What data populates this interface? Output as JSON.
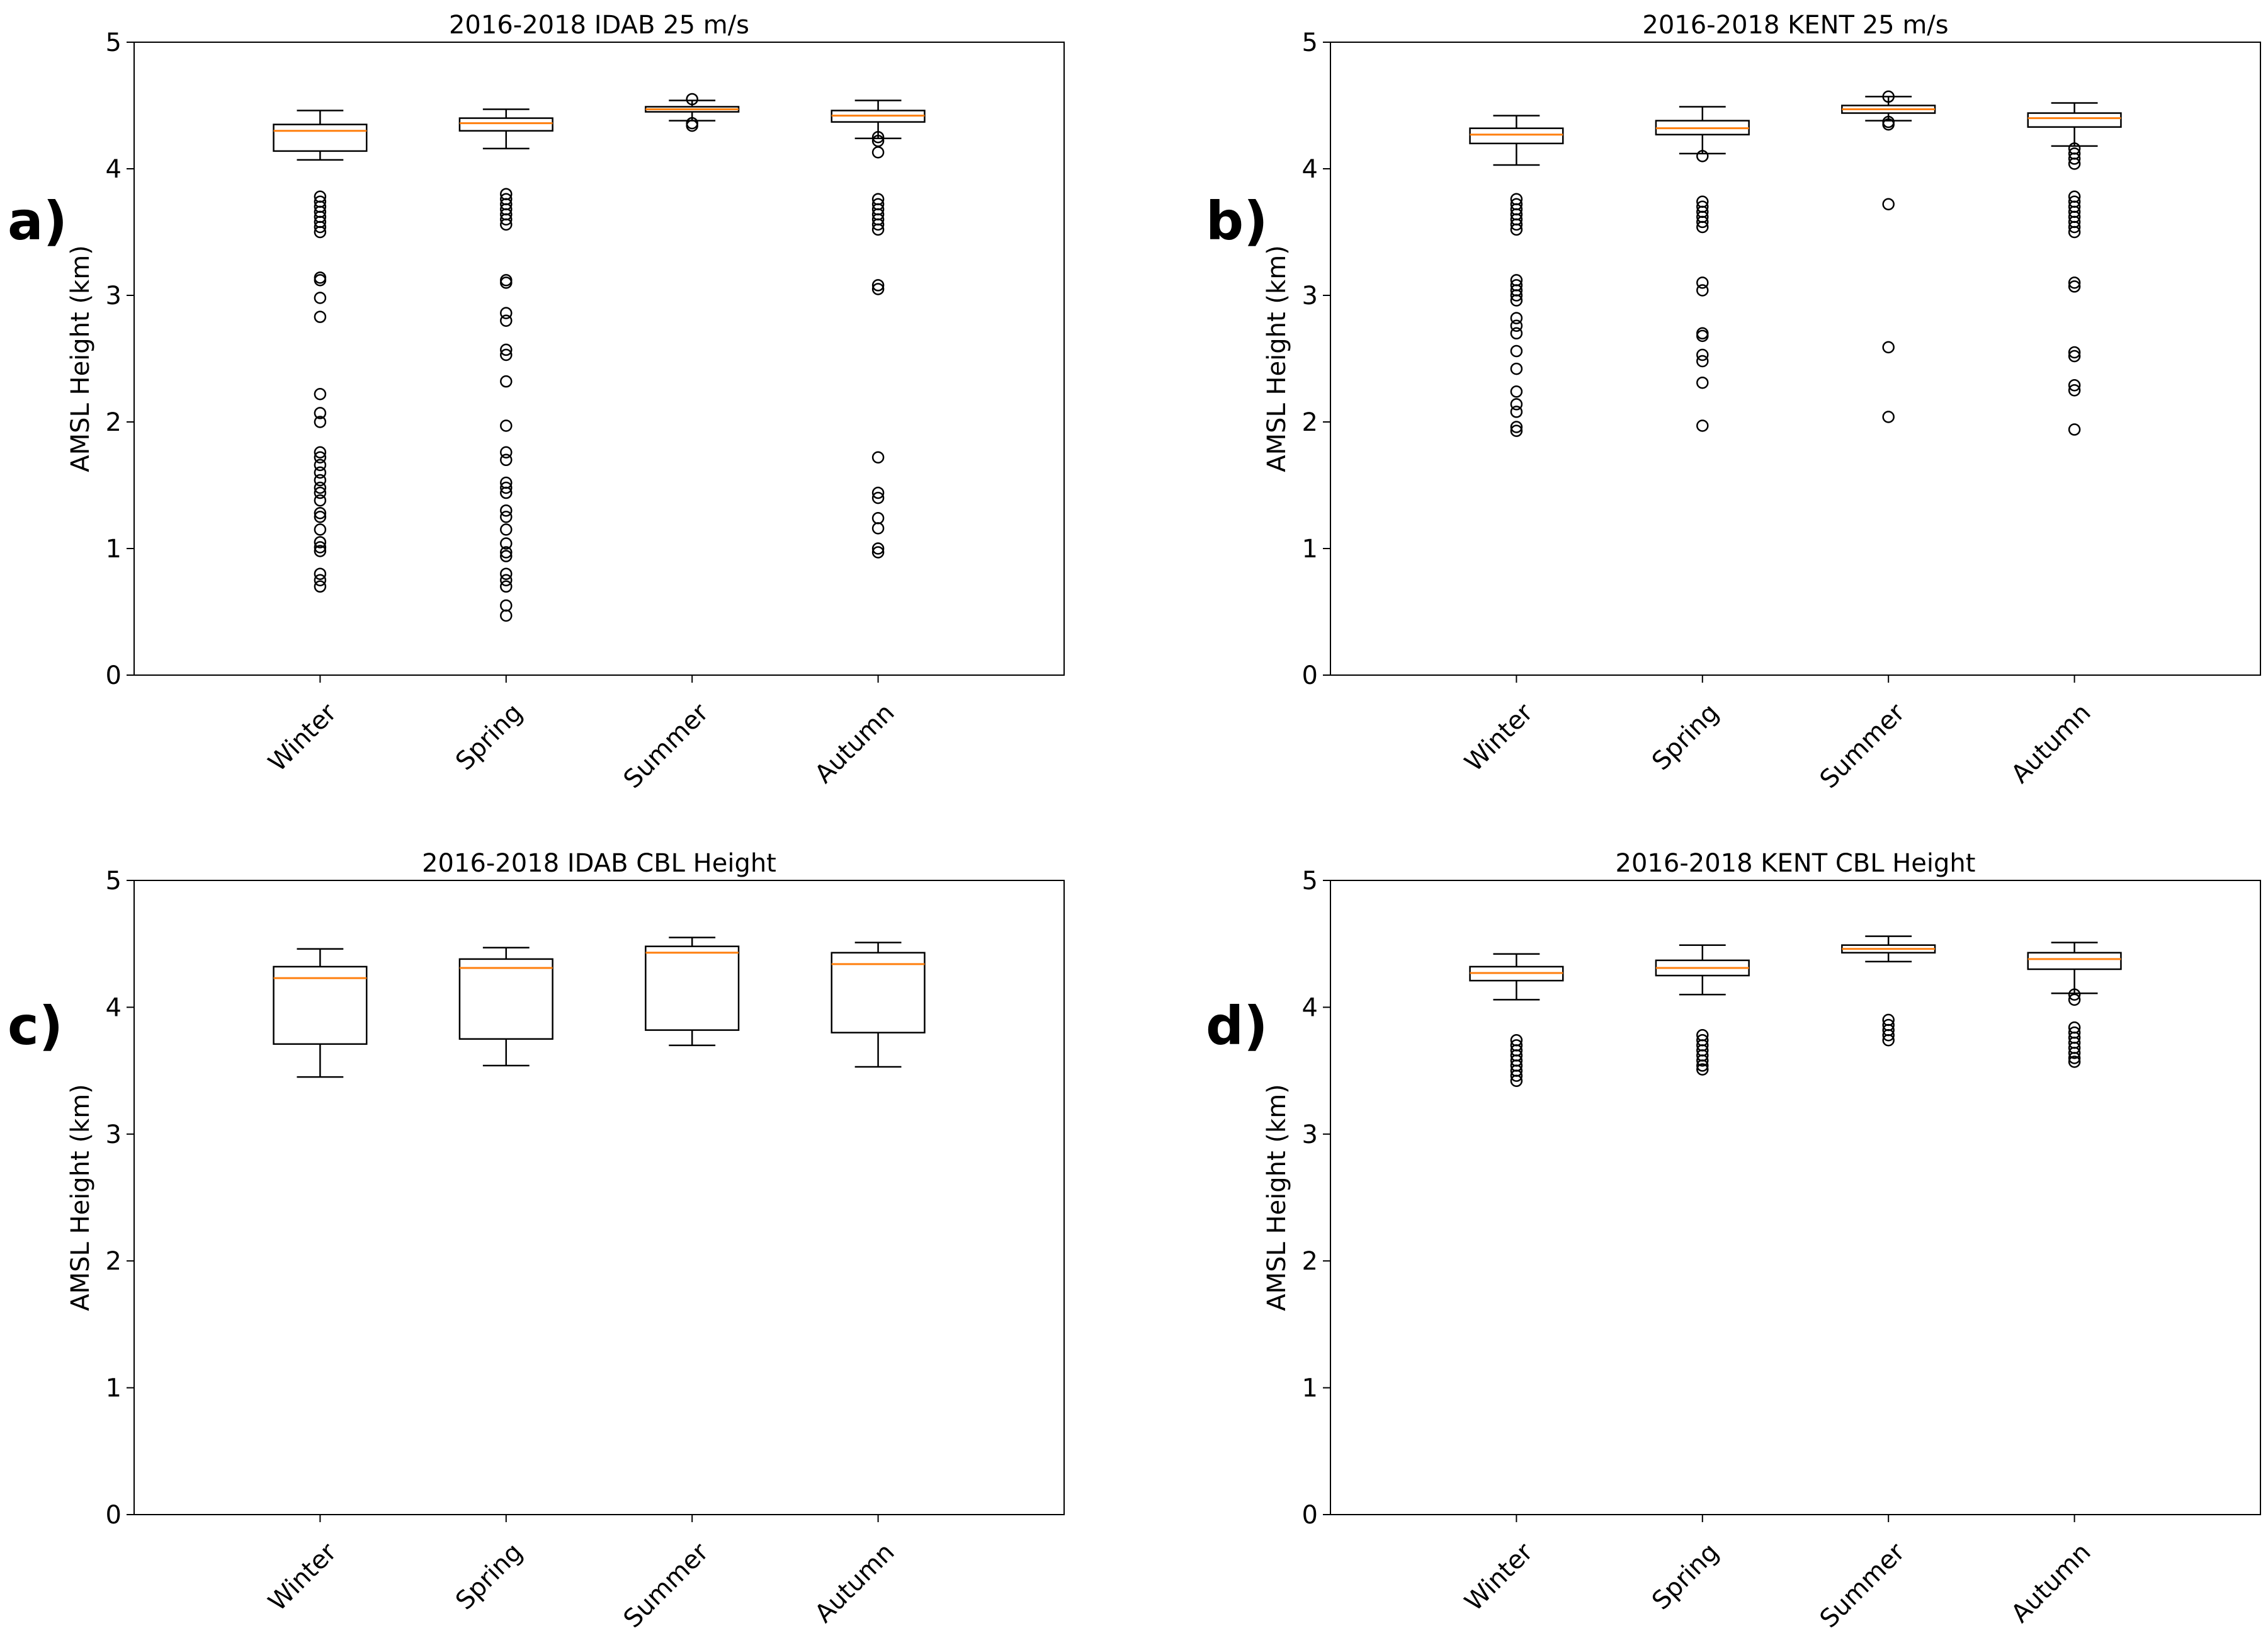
{
  "chart_data": [
    {
      "panel": "a)",
      "type": "box",
      "title": "2016-2018 IDAB 25 m/s",
      "ylabel": "AMSL Height (km)",
      "ylim": [
        0,
        5
      ],
      "yticks": [
        0,
        1,
        2,
        3,
        4,
        5
      ],
      "categories": [
        "Winter",
        "Spring",
        "Summer",
        "Autumn"
      ],
      "boxes": [
        {
          "whislo": 4.07,
          "q1": 4.14,
          "med": 4.3,
          "q3": 4.35,
          "whishi": 4.46,
          "fliers": [
            3.78,
            3.74,
            3.7,
            3.66,
            3.62,
            3.58,
            3.54,
            3.5,
            3.14,
            3.12,
            2.98,
            2.83,
            2.22,
            2.07,
            2.0,
            1.76,
            1.72,
            1.66,
            1.6,
            1.54,
            1.48,
            1.44,
            1.38,
            1.28,
            1.25,
            1.15,
            1.05,
            1.01,
            0.98,
            0.8,
            0.75,
            0.7
          ]
        },
        {
          "whislo": 4.16,
          "q1": 4.3,
          "med": 4.36,
          "q3": 4.4,
          "whishi": 4.47,
          "fliers": [
            3.8,
            3.76,
            3.72,
            3.68,
            3.64,
            3.6,
            3.56,
            3.12,
            3.1,
            2.86,
            2.8,
            2.57,
            2.53,
            2.32,
            1.97,
            1.76,
            1.7,
            1.52,
            1.48,
            1.44,
            1.3,
            1.25,
            1.15,
            1.04,
            0.97,
            0.94,
            0.8,
            0.75,
            0.7,
            0.55,
            0.47
          ]
        },
        {
          "whislo": 4.38,
          "q1": 4.45,
          "med": 4.47,
          "q3": 4.49,
          "whishi": 4.54,
          "fliers": [
            4.55,
            4.36,
            4.34
          ]
        },
        {
          "whislo": 4.24,
          "q1": 4.37,
          "med": 4.42,
          "q3": 4.46,
          "whishi": 4.54,
          "fliers": [
            4.25,
            4.22,
            4.13,
            3.76,
            3.72,
            3.68,
            3.64,
            3.6,
            3.56,
            3.52,
            3.08,
            3.05,
            1.72,
            1.44,
            1.4,
            1.24,
            1.16,
            1.0,
            0.97
          ]
        }
      ]
    },
    {
      "panel": "b)",
      "type": "box",
      "title": "2016-2018 KENT 25 m/s",
      "ylabel": "AMSL Height (km)",
      "ylim": [
        0,
        5
      ],
      "yticks": [
        0,
        1,
        2,
        3,
        4,
        5
      ],
      "categories": [
        "Winter",
        "Spring",
        "Summer",
        "Autumn"
      ],
      "boxes": [
        {
          "whislo": 4.03,
          "q1": 4.2,
          "med": 4.27,
          "q3": 4.32,
          "whishi": 4.42,
          "fliers": [
            3.76,
            3.72,
            3.68,
            3.64,
            3.6,
            3.56,
            3.52,
            3.12,
            3.08,
            3.04,
            3.0,
            2.96,
            2.82,
            2.76,
            2.7,
            2.56,
            2.42,
            2.24,
            2.14,
            2.08,
            1.96,
            1.93
          ]
        },
        {
          "whislo": 4.12,
          "q1": 4.27,
          "med": 4.32,
          "q3": 4.38,
          "whishi": 4.49,
          "fliers": [
            4.1,
            3.74,
            3.7,
            3.66,
            3.62,
            3.58,
            3.54,
            3.1,
            3.04,
            2.7,
            2.68,
            2.53,
            2.48,
            2.31,
            1.97
          ]
        },
        {
          "whislo": 4.38,
          "q1": 4.44,
          "med": 4.47,
          "q3": 4.5,
          "whishi": 4.57,
          "fliers": [
            4.57,
            4.37,
            4.35,
            3.72,
            2.59,
            2.04
          ]
        },
        {
          "whislo": 4.18,
          "q1": 4.33,
          "med": 4.4,
          "q3": 4.44,
          "whishi": 4.52,
          "fliers": [
            4.16,
            4.12,
            4.08,
            4.04,
            3.78,
            3.74,
            3.7,
            3.66,
            3.62,
            3.58,
            3.54,
            3.5,
            3.1,
            3.07,
            2.55,
            2.52,
            2.29,
            2.25,
            1.94
          ]
        }
      ]
    },
    {
      "panel": "c)",
      "type": "box",
      "title": "2016-2018 IDAB  CBL Height",
      "ylabel": "AMSL Height (km)",
      "ylim": [
        0,
        5
      ],
      "yticks": [
        0,
        1,
        2,
        3,
        4,
        5
      ],
      "categories": [
        "Winter",
        "Spring",
        "Summer",
        "Autumn"
      ],
      "boxes": [
        {
          "whislo": 3.45,
          "q1": 3.71,
          "med": 4.23,
          "q3": 4.32,
          "whishi": 4.46,
          "fliers": []
        },
        {
          "whislo": 3.54,
          "q1": 3.75,
          "med": 4.31,
          "q3": 4.38,
          "whishi": 4.47,
          "fliers": []
        },
        {
          "whislo": 3.7,
          "q1": 3.82,
          "med": 4.43,
          "q3": 4.48,
          "whishi": 4.55,
          "fliers": []
        },
        {
          "whislo": 3.53,
          "q1": 3.8,
          "med": 4.34,
          "q3": 4.43,
          "whishi": 4.51,
          "fliers": []
        }
      ]
    },
    {
      "panel": "d)",
      "type": "box",
      "title": "2016-2018 KENT  CBL Height",
      "ylabel": "AMSL Height (km)",
      "ylim": [
        0,
        5
      ],
      "yticks": [
        0,
        1,
        2,
        3,
        4,
        5
      ],
      "categories": [
        "Winter",
        "Spring",
        "Summer",
        "Autumn"
      ],
      "boxes": [
        {
          "whislo": 4.06,
          "q1": 4.21,
          "med": 4.27,
          "q3": 4.32,
          "whishi": 4.42,
          "fliers": [
            3.74,
            3.7,
            3.66,
            3.62,
            3.58,
            3.54,
            3.5,
            3.46,
            3.42
          ]
        },
        {
          "whislo": 4.1,
          "q1": 4.25,
          "med": 4.31,
          "q3": 4.37,
          "whishi": 4.49,
          "fliers": [
            3.78,
            3.74,
            3.7,
            3.66,
            3.62,
            3.58,
            3.54,
            3.51
          ]
        },
        {
          "whislo": 4.36,
          "q1": 4.43,
          "med": 4.46,
          "q3": 4.49,
          "whishi": 4.56,
          "fliers": [
            3.9,
            3.86,
            3.82,
            3.78,
            3.74
          ]
        },
        {
          "whislo": 4.11,
          "q1": 4.3,
          "med": 4.38,
          "q3": 4.43,
          "whishi": 4.51,
          "fliers": [
            4.1,
            4.06,
            3.84,
            3.8,
            3.76,
            3.72,
            3.68,
            3.64,
            3.6,
            3.57
          ]
        }
      ]
    }
  ],
  "colors": {
    "median": "#ff7f0e",
    "box": "#000000",
    "flier": "#000000",
    "axes": "#000000"
  }
}
